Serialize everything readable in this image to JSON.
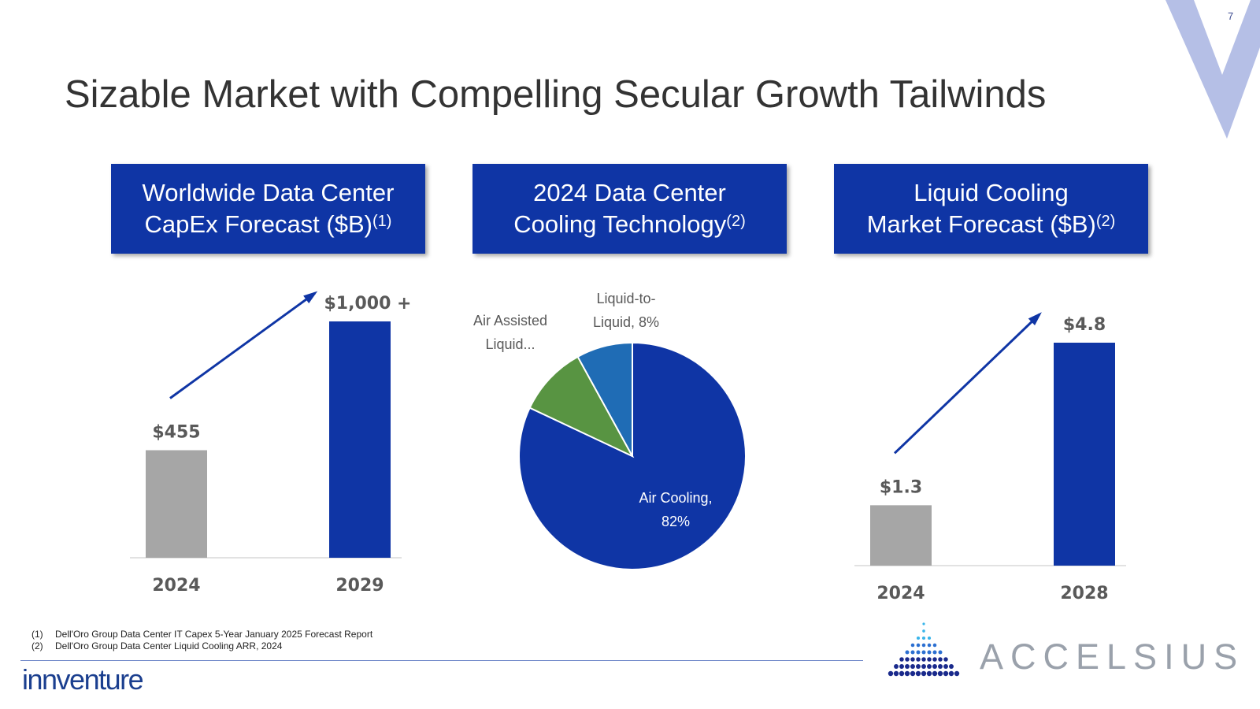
{
  "page": {
    "title": "Sizable Market with Compelling Secular Growth Tailwinds",
    "page_number": "7",
    "accent_color": "#0f35a5",
    "corner_mark_color": "#b5bfe6"
  },
  "panels": [
    {
      "title_line1": "Worldwide Data Center",
      "title_line2": "CapEx Forecast ($B)",
      "footnote_ref": "(1)"
    },
    {
      "title_line1": "2024 Data Center",
      "title_line2": "Cooling Technology",
      "footnote_ref": "(2)"
    },
    {
      "title_line1": "Liquid Cooling",
      "title_line2": "Market  Forecast ($B)",
      "footnote_ref": "(2)"
    }
  ],
  "chart_data": [
    {
      "type": "bar",
      "categories": [
        "2024",
        "2029"
      ],
      "values": [
        455,
        1000
      ],
      "data_labels": [
        "$455",
        "$1,000 +"
      ],
      "colors": [
        "#a6a6a6",
        "#0f35a5"
      ],
      "ylim": [
        0,
        1000
      ],
      "growth_arrow": true
    },
    {
      "type": "pie",
      "slices": [
        {
          "label": "Air Cooling, 82%",
          "label_line1": "Air Cooling,",
          "label_line2": "82%",
          "value": 82,
          "color": "#0f35a5"
        },
        {
          "label": "Air Assisted Liquid...",
          "label_line1": "Air Assisted",
          "label_line2": "Liquid...",
          "value": 10,
          "color": "#589442"
        },
        {
          "label": "Liquid-to-Liquid, 8%",
          "label_line1": "Liquid-to-",
          "label_line2": "Liquid, 8%",
          "value": 8,
          "color": "#1f6cb5"
        }
      ]
    },
    {
      "type": "bar",
      "categories": [
        "2024",
        "2028"
      ],
      "values": [
        1.3,
        4.8
      ],
      "data_labels": [
        "$1.3",
        "$4.8"
      ],
      "colors": [
        "#a6a6a6",
        "#0f35a5"
      ],
      "ylim": [
        0,
        4.8
      ],
      "growth_arrow": true
    }
  ],
  "footnotes": [
    {
      "num": "(1)",
      "text": "Dell'Oro Group  Data Center IT Capex 5-Year January 2025 Forecast Report"
    },
    {
      "num": "(2)",
      "text": "Dell'Oro Group Data Center Liquid Cooling ARR, 2024"
    }
  ],
  "logos": {
    "innventure": "innventure",
    "accelsius": "ACCELSIUS"
  }
}
